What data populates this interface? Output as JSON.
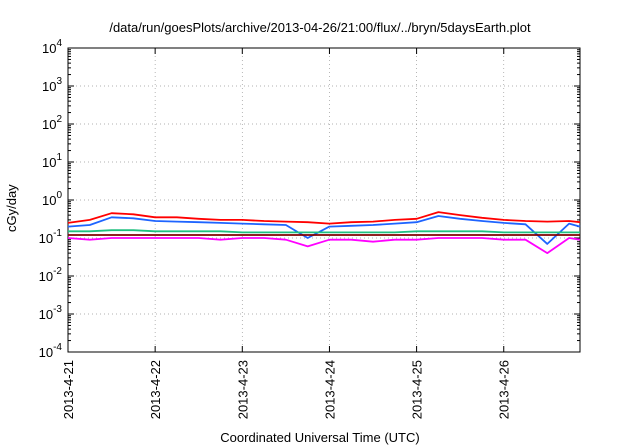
{
  "chart_data": {
    "type": "line",
    "title": "/data/run/goesPlots/archive/2013-04-26/21:00/flux/../bryn/5daysEarth.plot",
    "xlabel": "Coordinated Universal Time (UTC)",
    "ylabel": "cGy/day",
    "yscale": "log",
    "ylim": [
      0.0001,
      10000
    ],
    "xlim": [
      "2013-04-21",
      "2013-04-26 21:00"
    ],
    "xticks": [
      "2013-4-21",
      "2013-4-22",
      "2013-4-23",
      "2013-4-24",
      "2013-4-25",
      "2013-4-26"
    ],
    "yticks": [
      {
        "base": "10",
        "exp": "-4"
      },
      {
        "base": "10",
        "exp": "-3"
      },
      {
        "base": "10",
        "exp": "-2"
      },
      {
        "base": "10",
        "exp": "-1"
      },
      {
        "base": "10",
        "exp": "0"
      },
      {
        "base": "10",
        "exp": "1"
      },
      {
        "base": "10",
        "exp": "2"
      },
      {
        "base": "10",
        "exp": "3"
      },
      {
        "base": "10",
        "exp": "4"
      }
    ],
    "grid": true,
    "x": [
      "2013-04-21 00:00",
      "2013-04-21 06:00",
      "2013-04-21 12:00",
      "2013-04-21 18:00",
      "2013-04-22 00:00",
      "2013-04-22 06:00",
      "2013-04-22 12:00",
      "2013-04-22 18:00",
      "2013-04-23 00:00",
      "2013-04-23 06:00",
      "2013-04-23 12:00",
      "2013-04-23 18:00",
      "2013-04-24 00:00",
      "2013-04-24 06:00",
      "2013-04-24 12:00",
      "2013-04-24 18:00",
      "2013-04-25 00:00",
      "2013-04-25 06:00",
      "2013-04-25 12:00",
      "2013-04-25 18:00",
      "2013-04-26 00:00",
      "2013-04-26 06:00",
      "2013-04-26 12:00",
      "2013-04-26 18:00",
      "2013-04-26 21:00"
    ],
    "series": [
      {
        "color": "#ff0000",
        "values": [
          0.25,
          0.3,
          0.45,
          0.42,
          0.35,
          0.35,
          0.32,
          0.3,
          0.3,
          0.28,
          0.27,
          0.26,
          0.24,
          0.26,
          0.27,
          0.3,
          0.32,
          0.48,
          0.4,
          0.34,
          0.3,
          0.28,
          0.27,
          0.28,
          0.26
        ]
      },
      {
        "color": "#1e64ff",
        "values": [
          0.2,
          0.22,
          0.35,
          0.33,
          0.28,
          0.27,
          0.26,
          0.25,
          0.24,
          0.23,
          0.22,
          0.1,
          0.2,
          0.21,
          0.22,
          0.24,
          0.26,
          0.38,
          0.32,
          0.28,
          0.25,
          0.23,
          0.07,
          0.24,
          0.2
        ]
      },
      {
        "color": "#20c080",
        "values": [
          0.15,
          0.15,
          0.16,
          0.16,
          0.15,
          0.15,
          0.15,
          0.15,
          0.14,
          0.14,
          0.14,
          0.14,
          0.14,
          0.14,
          0.14,
          0.14,
          0.15,
          0.15,
          0.15,
          0.15,
          0.14,
          0.14,
          0.14,
          0.14,
          0.14
        ]
      },
      {
        "color": "#800000",
        "values": [
          0.12,
          0.12,
          0.12,
          0.12,
          0.12,
          0.12,
          0.12,
          0.12,
          0.12,
          0.12,
          0.12,
          0.12,
          0.12,
          0.12,
          0.12,
          0.12,
          0.12,
          0.12,
          0.12,
          0.12,
          0.12,
          0.12,
          0.12,
          0.12,
          0.12
        ]
      },
      {
        "color": "#ff00ff",
        "values": [
          0.1,
          0.09,
          0.1,
          0.1,
          0.1,
          0.1,
          0.1,
          0.09,
          0.1,
          0.1,
          0.09,
          0.06,
          0.09,
          0.09,
          0.08,
          0.09,
          0.09,
          0.1,
          0.1,
          0.1,
          0.09,
          0.09,
          0.04,
          0.1,
          0.09
        ]
      }
    ]
  }
}
